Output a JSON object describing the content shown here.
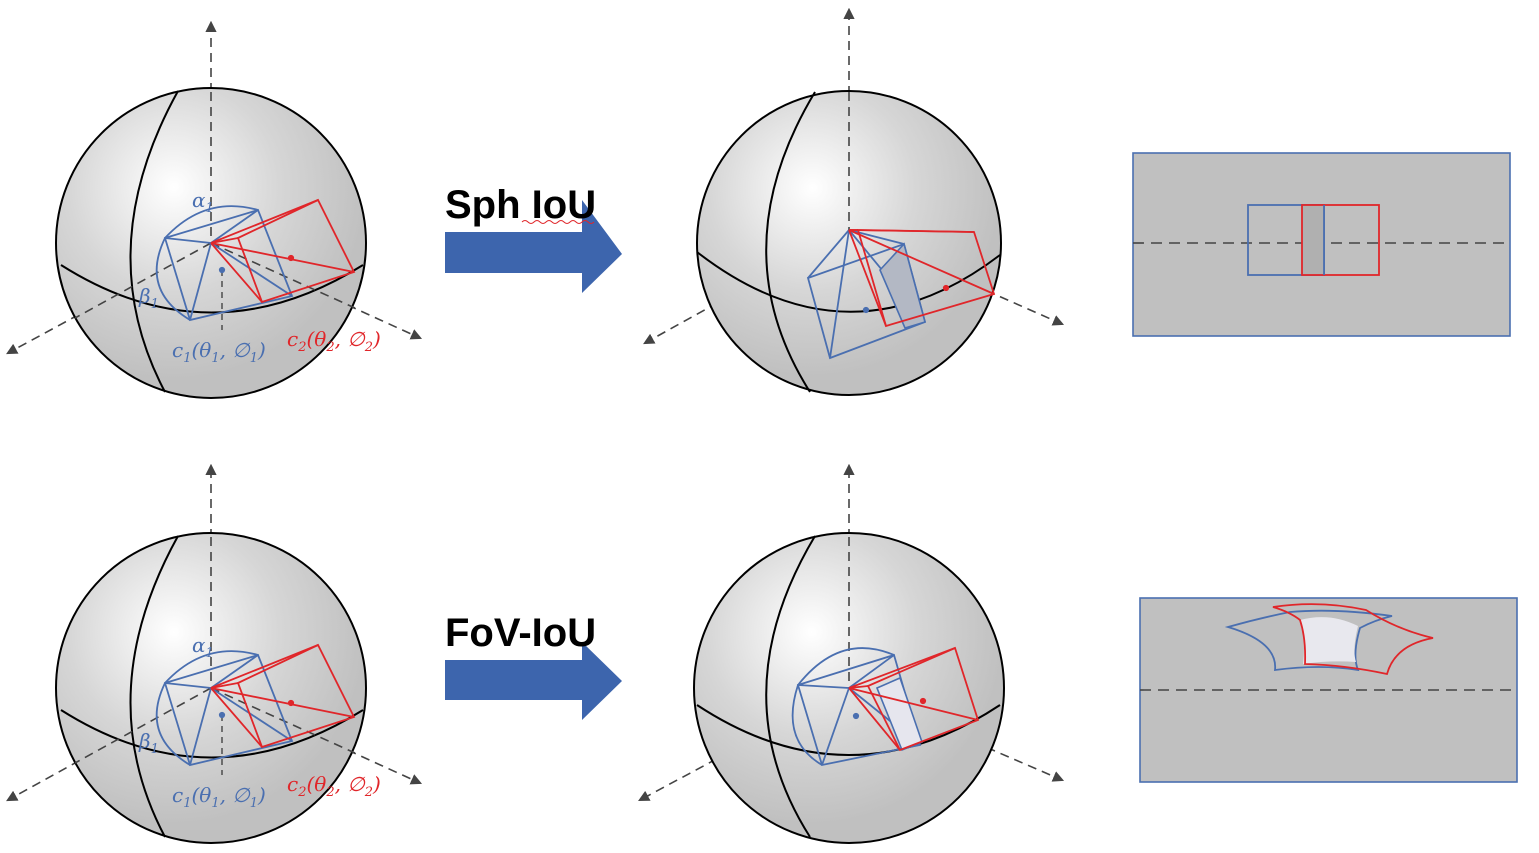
{
  "colors": {
    "blue": "#4a6fb0",
    "red": "#e0262a",
    "arrow": "#3d65ad",
    "panel_fill": "#c0c0c0",
    "panel_border": "#4a6fb0"
  },
  "rows": [
    {
      "method": "Sph IoU",
      "labels": {
        "alpha": "α",
        "beta": "β",
        "sub1": "1",
        "sub2": "2",
        "c1": "c",
        "c2": "c",
        "c1_args": "(θ",
        "c1_args2": ", ∅",
        "c2_args": "(θ",
        "c2_args2": ", ∅",
        "close": ")"
      }
    },
    {
      "method": "FoV-IoU",
      "labels": {
        "alpha": "α",
        "beta": "β",
        "sub1": "1",
        "sub2": "2",
        "c1": "c",
        "c2": "c",
        "c1_args": "(θ",
        "c1_args2": ", ∅",
        "c2_args": "(θ",
        "c2_args2": ", ∅",
        "close": ")"
      }
    }
  ]
}
